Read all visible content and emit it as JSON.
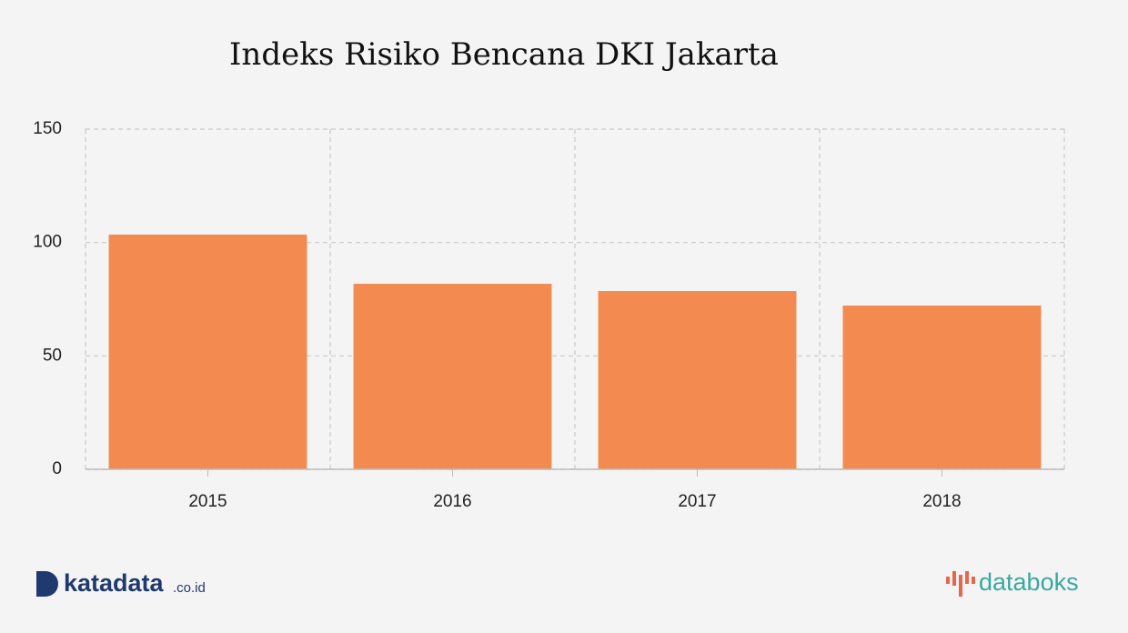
{
  "chart_data": {
    "type": "bar",
    "title": "Indeks Risiko Bencana DKI Jakarta",
    "categories": [
      "2015",
      "2016",
      "2017",
      "2018"
    ],
    "values": [
      103.5,
      81.8,
      78.6,
      72.2
    ],
    "color": "#f38b50",
    "ylim": [
      0,
      150
    ],
    "yticks": [
      0,
      50,
      100,
      150
    ],
    "grid": true
  },
  "branding": {
    "left": "katadata",
    "left_suffix": ".co.id",
    "right": "databoks"
  }
}
